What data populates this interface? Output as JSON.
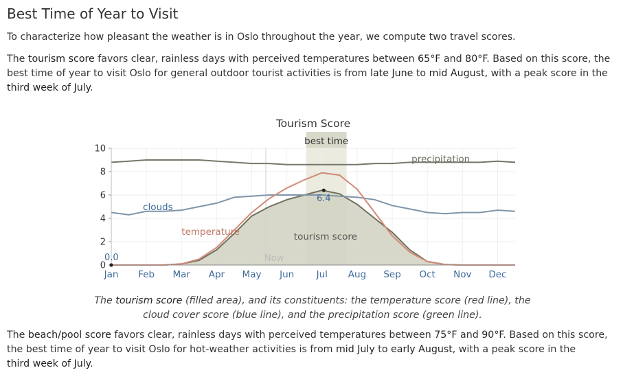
{
  "heading": "Best Time of Year to Visit",
  "intro": "To characterize how pleasant the weather is in Oslo throughout the year, we compute two travel scores.",
  "tourism_paragraph": {
    "t1": "The ",
    "b1": "tourism score",
    "t2": " favors clear, rainless days with perceived temperatures between ",
    "b2": "65°F",
    "t3": " and ",
    "b3": "80°F",
    "t4": ". Based on this score, the best time of year to visit Oslo for general outdoor tourist activities is from ",
    "b4": "late June",
    "t5": " to ",
    "b5": "mid August",
    "t6": ", with a peak score in the",
    "b6": "third week of July",
    "t7": "."
  },
  "caption": {
    "t1": "The ",
    "b1": "tourism score",
    "t2": " (filled area), and its constituents: the temperature score (red line), the cloud cover score (blue line), and the precipitation score (green line)."
  },
  "beach_paragraph": {
    "t1": "The ",
    "b1": "beach/pool score",
    "t2": " favors clear, rainless days with perceived temperatures between ",
    "b2": "75°F",
    "t3": " and ",
    "b3": "90°F",
    "t4": ". Based on this score, the best time of year to visit Oslo for hot-weather activities is from ",
    "b4": "mid July",
    "t5": " to ",
    "b5": "early August",
    "t6": ", with a peak score in the",
    "b6": "third week of July",
    "t7": "."
  },
  "colors": {
    "fill": "#d4d4c4",
    "fill_stroke": "#6f715d",
    "temperature": "#d08b78",
    "clouds": "#7f95a8",
    "precipitation": "#75786a",
    "best_band": "#ebebdf",
    "label_blue": "#3d6a99",
    "label_red": "#c07966",
    "label_green": "#6a6d5c"
  },
  "chart_data": {
    "type": "area",
    "title": "Tourism Score",
    "ylim": [
      0,
      10
    ],
    "y_ticks": [
      "0",
      "2",
      "4",
      "6",
      "8",
      "10"
    ],
    "months": [
      "Jan",
      "Feb",
      "Mar",
      "Apr",
      "May",
      "Jun",
      "Jul",
      "Aug",
      "Sep",
      "Oct",
      "Nov",
      "Dec"
    ],
    "best_time_label": "best time",
    "best_time_range_month": [
      5.55,
      6.7
    ],
    "now_label": "Now",
    "now_month": 4.4,
    "min_label": "0.0",
    "min_point": [
      0.0,
      0.0
    ],
    "peak_label": "6.4",
    "peak_point": [
      6.05,
      6.4
    ],
    "series": [
      {
        "name": "tourism score",
        "x": [
          0,
          1,
          1.5,
          2,
          2.5,
          3,
          3.5,
          4,
          4.5,
          5,
          5.5,
          6,
          6.5,
          7,
          7.5,
          8,
          8.5,
          9,
          9.5,
          10,
          10.5,
          11,
          11.5
        ],
        "y": [
          0,
          0,
          0,
          0.1,
          0.4,
          1.3,
          2.7,
          4.2,
          5.0,
          5.6,
          6.0,
          6.4,
          6.1,
          5.2,
          4.0,
          2.8,
          1.3,
          0.3,
          0.05,
          0,
          0,
          0,
          0
        ]
      },
      {
        "name": "temperature",
        "x": [
          0,
          1,
          1.5,
          2,
          2.5,
          3,
          3.5,
          4,
          4.5,
          5,
          5.5,
          6,
          6.5,
          7,
          7.5,
          8,
          8.5,
          9,
          9.5,
          10,
          10.5,
          11,
          11.5
        ],
        "y": [
          0,
          0,
          0,
          0.1,
          0.5,
          1.5,
          3.0,
          4.5,
          5.7,
          6.6,
          7.3,
          7.9,
          7.7,
          6.5,
          4.5,
          2.5,
          1.1,
          0.3,
          0.05,
          0,
          0,
          0,
          0
        ]
      },
      {
        "name": "clouds",
        "x": [
          0,
          0.5,
          1,
          1.5,
          2,
          2.5,
          3,
          3.5,
          4,
          4.5,
          5,
          5.5,
          6,
          6.5,
          7,
          7.5,
          8,
          8.5,
          9,
          9.5,
          10,
          10.5,
          11,
          11.5
        ],
        "y": [
          4.5,
          4.3,
          4.6,
          4.6,
          4.7,
          5.0,
          5.3,
          5.8,
          5.9,
          6.0,
          6.0,
          6.0,
          6.0,
          5.9,
          5.8,
          5.6,
          5.1,
          4.8,
          4.5,
          4.4,
          4.5,
          4.5,
          4.7,
          4.6
        ]
      },
      {
        "name": "precipitation",
        "x": [
          0,
          0.5,
          1,
          1.5,
          2,
          2.5,
          3,
          3.5,
          4,
          4.5,
          5,
          5.5,
          6,
          6.5,
          7,
          7.5,
          8,
          8.5,
          9,
          9.5,
          10,
          10.5,
          11,
          11.5
        ],
        "y": [
          8.8,
          8.9,
          9.0,
          9.0,
          9.0,
          9.0,
          8.9,
          8.8,
          8.7,
          8.7,
          8.6,
          8.6,
          8.6,
          8.6,
          8.6,
          8.7,
          8.7,
          8.8,
          8.8,
          8.8,
          8.8,
          8.8,
          8.9,
          8.8
        ]
      }
    ]
  }
}
